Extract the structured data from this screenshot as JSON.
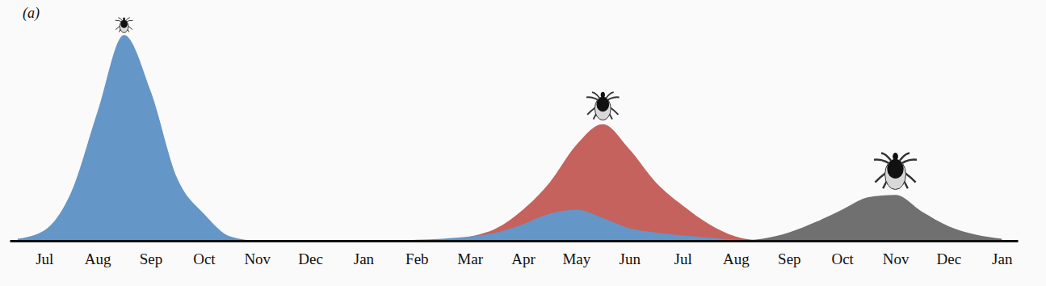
{
  "chart_data": {
    "type": "area",
    "title": "(a)",
    "x": [
      -0.5,
      0,
      0.5,
      1,
      1.5,
      2,
      2.5,
      3,
      3.5,
      4,
      4.5,
      5,
      5.5,
      6,
      6.5,
      7,
      7.5,
      8,
      8.5,
      9,
      9.5,
      10,
      10.5,
      11,
      11.5,
      12,
      12.5,
      13,
      13.5,
      14,
      14.5,
      15,
      15.5,
      16,
      16.5,
      17,
      17.5,
      18
    ],
    "series": [
      {
        "color": "#c5625d",
        "values": [
          null,
          null,
          null,
          null,
          null,
          null,
          null,
          null,
          null,
          null,
          null,
          null,
          null,
          null,
          null,
          0,
          0.5,
          2,
          6,
          15,
          28,
          46,
          56,
          44,
          28,
          17,
          8,
          2,
          0,
          null,
          null,
          null,
          null,
          null,
          null,
          null,
          null,
          null
        ]
      },
      {
        "color": "#6596c8",
        "values": [
          1,
          5,
          23,
          62,
          99,
          72,
          30,
          13,
          2,
          0,
          0,
          0,
          0,
          0,
          0,
          0.5,
          1,
          2,
          4,
          8,
          13,
          15,
          11,
          6,
          4,
          2.5,
          1.5,
          0.5,
          0,
          0,
          0,
          0,
          0,
          0,
          0,
          0,
          0,
          0
        ]
      },
      {
        "color": "#707070",
        "values": [
          null,
          null,
          null,
          null,
          null,
          null,
          null,
          null,
          null,
          null,
          null,
          null,
          null,
          null,
          null,
          null,
          null,
          null,
          null,
          null,
          null,
          null,
          null,
          null,
          null,
          null,
          null,
          0,
          1,
          4,
          9,
          15,
          21,
          22,
          14,
          7,
          3,
          1
        ]
      }
    ],
    "xlim": [
      -0.65,
      18.3
    ],
    "xticks": [
      {
        "value": 0,
        "label": "Jul"
      },
      {
        "value": 1,
        "label": "Aug"
      },
      {
        "value": 2,
        "label": "Sep"
      },
      {
        "value": 3,
        "label": "Oct"
      },
      {
        "value": 4,
        "label": "Nov"
      },
      {
        "value": 5,
        "label": "Dec"
      },
      {
        "value": 6,
        "label": "Jan"
      },
      {
        "value": 7,
        "label": "Feb"
      },
      {
        "value": 8,
        "label": "Mar"
      },
      {
        "value": 9,
        "label": "Apr"
      },
      {
        "value": 10,
        "label": "May"
      },
      {
        "value": 11,
        "label": "Jun"
      },
      {
        "value": 12,
        "label": "Jul"
      },
      {
        "value": 13,
        "label": "Aug"
      },
      {
        "value": 14,
        "label": "Sep"
      },
      {
        "value": 15,
        "label": "Oct"
      },
      {
        "value": 16,
        "label": "Nov"
      },
      {
        "value": 17,
        "label": "Dec"
      },
      {
        "value": 18,
        "label": "Jan"
      }
    ],
    "ylim": [
      0,
      108
    ],
    "tick_labels": "x"
  }
}
